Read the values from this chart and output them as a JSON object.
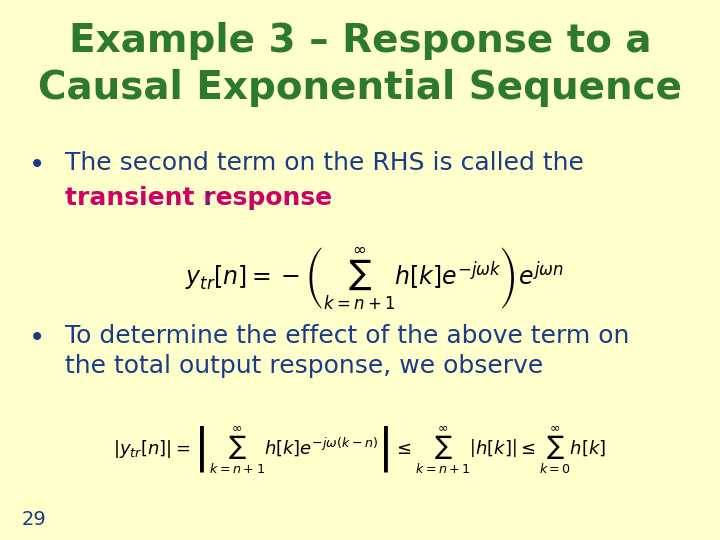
{
  "background_color": "#ffffcc",
  "title_line1": "Example 3 – Response to a",
  "title_line2": "Causal Exponential Sequence",
  "title_color": "#2d7a2d",
  "title_fontsize": 28,
  "bullet1_text1": "The second term on the RHS is called the",
  "bullet1_text2_plain": "transient response",
  "bullet1_text2_color": "#cc0066",
  "bullet1_colon": ":",
  "bullet_color": "#1a3a8a",
  "bullet_fontsize": 18,
  "bullet2_text1": "To determine the effect of the above term on",
  "bullet2_text2": "the total output response, we observe",
  "page_number": "29",
  "eq_color": "#000000",
  "eq_fontsize": 16
}
